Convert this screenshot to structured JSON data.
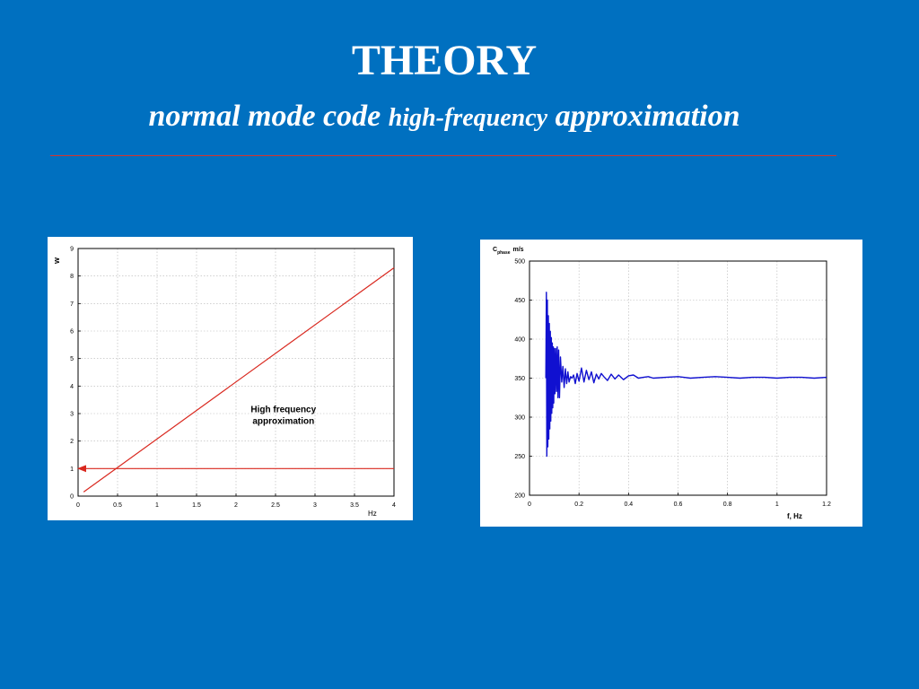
{
  "slide": {
    "title": "THEORY",
    "subtitle_part1": "normal mode code",
    "subtitle_part2": "high-frequency",
    "subtitle_part3": "approximation"
  },
  "colors": {
    "background": "#0070C0",
    "title_text": "#ffffff",
    "rule": "#d8342c",
    "left_chart_lines": "#d9281f",
    "right_chart_line": "#1010d0",
    "grid": "#b4b4b4"
  },
  "chart_data": [
    {
      "type": "line",
      "title": "",
      "xlabel": "Hz",
      "ylabel": "w",
      "xlim": [
        0,
        4
      ],
      "ylim": [
        0,
        9
      ],
      "xticks": [
        0,
        0.5,
        1,
        1.5,
        2,
        2.5,
        3,
        3.5,
        4
      ],
      "xtick_labels": [
        "0",
        "0.5",
        "1",
        "1.5",
        "2",
        "2.5",
        "3",
        "3.5",
        "4"
      ],
      "yticks": [
        0,
        1,
        2,
        3,
        4,
        5,
        6,
        7,
        8,
        9
      ],
      "ytick_labels": [
        "0",
        "1",
        "2",
        "3",
        "4",
        "5",
        "6",
        "7",
        "8",
        "9"
      ],
      "grid": true,
      "series": [
        {
          "x": [
            0.07,
            4.0
          ],
          "y": [
            0.15,
            8.3
          ]
        },
        {
          "x": [
            0.0,
            4.0
          ],
          "y": [
            1.0,
            1.0
          ],
          "arrow_at_start": true
        }
      ],
      "annotation": {
        "line1": "High frequency",
        "line2": "approximation",
        "x": 2.6,
        "y": 3.05
      }
    },
    {
      "type": "line",
      "title": "",
      "xlabel": "f, Hz",
      "ylabel_main": "C",
      "ylabel_sub": "phase",
      "ylabel_unit": "m/s",
      "xlim": [
        0,
        1.2
      ],
      "ylim": [
        200,
        500
      ],
      "xticks": [
        0,
        0.2,
        0.4,
        0.6,
        0.8,
        1,
        1.2
      ],
      "xtick_labels": [
        "0",
        "0.2",
        "0.4",
        "0.6",
        "0.8",
        "1",
        "1.2"
      ],
      "yticks": [
        200,
        250,
        300,
        350,
        400,
        450,
        500
      ],
      "ytick_labels": [
        "200",
        "250",
        "300",
        "350",
        "400",
        "450",
        "500"
      ],
      "grid": true,
      "series": [
        {
          "x": [
            0.066,
            0.068,
            0.07,
            0.072,
            0.074,
            0.076,
            0.078,
            0.08,
            0.082,
            0.084,
            0.086,
            0.088,
            0.09,
            0.092,
            0.094,
            0.096,
            0.098,
            0.1,
            0.103,
            0.106,
            0.109,
            0.112,
            0.115,
            0.118,
            0.121,
            0.125,
            0.13,
            0.135,
            0.14,
            0.145,
            0.15,
            0.155,
            0.16,
            0.166,
            0.172,
            0.178,
            0.185,
            0.192,
            0.2,
            0.21,
            0.22,
            0.23,
            0.24,
            0.25,
            0.26,
            0.27,
            0.28,
            0.29,
            0.3,
            0.315,
            0.33,
            0.345,
            0.36,
            0.38,
            0.4,
            0.42,
            0.44,
            0.46,
            0.48,
            0.5,
            0.55,
            0.6,
            0.65,
            0.7,
            0.75,
            0.8,
            0.85,
            0.9,
            0.95,
            1.0,
            1.05,
            1.1,
            1.15,
            1.2
          ],
          "y": [
            350,
            460,
            250,
            450,
            262,
            430,
            272,
            420,
            285,
            410,
            295,
            402,
            305,
            395,
            312,
            390,
            318,
            388,
            330,
            388,
            333,
            390,
            325,
            386,
            325,
            377,
            345,
            365,
            338,
            362,
            343,
            358,
            345,
            352,
            350,
            354,
            343,
            356,
            346,
            363,
            345,
            360,
            348,
            358,
            344,
            355,
            349,
            356,
            352,
            347,
            355,
            349,
            354,
            348,
            353,
            354,
            350,
            351,
            352,
            350,
            351,
            352,
            350,
            351,
            352,
            351,
            350,
            351,
            351,
            350,
            351,
            351,
            350,
            351
          ]
        }
      ]
    }
  ]
}
